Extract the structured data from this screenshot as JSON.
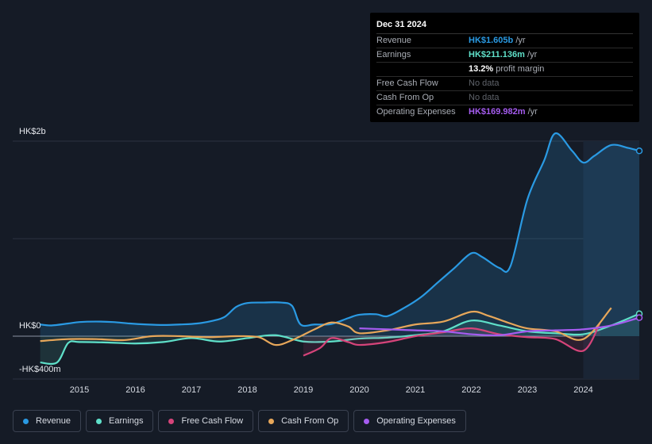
{
  "tooltip": {
    "date": "Dec 31 2024",
    "rows": [
      {
        "label": "Revenue",
        "value": "HK$1.605b",
        "unit": " /yr",
        "color": "#2a9ae3"
      },
      {
        "label": "Earnings",
        "value": "HK$211.136m",
        "unit": " /yr",
        "color": "#5fe0c9"
      },
      {
        "label": "",
        "value": "13.2%",
        "unit": " profit margin",
        "color": "#ffffff"
      },
      {
        "label": "Free Cash Flow",
        "value": "No data",
        "unit": "",
        "color": "#5f636a"
      },
      {
        "label": "Cash From Op",
        "value": "No data",
        "unit": "",
        "color": "#5f636a"
      },
      {
        "label": "Operating Expenses",
        "value": "HK$169.982m",
        "unit": " /yr",
        "color": "#a55cf0"
      }
    ]
  },
  "chart_data": {
    "type": "line",
    "title": "",
    "y_labels": {
      "top": "HK$2b",
      "zero": "HK$0",
      "bottom": "-HK$400m"
    },
    "ylim": [
      -400,
      2000
    ],
    "xlim": [
      2014.3,
      2025.0
    ],
    "x_ticks": [
      "2015",
      "2016",
      "2017",
      "2018",
      "2019",
      "2020",
      "2021",
      "2022",
      "2023",
      "2024"
    ],
    "x_tick_values": [
      2015,
      2016,
      2017,
      2018,
      2019,
      2020,
      2021,
      2022,
      2023,
      2024
    ],
    "forecast_start": 2024,
    "series": [
      {
        "name": "Revenue",
        "color": "#2a9ae3",
        "fill": true,
        "x": [
          2014.3,
          2014.5,
          2014.8,
          2015.0,
          2015.3,
          2015.6,
          2015.9,
          2016.2,
          2016.5,
          2016.8,
          2017.1,
          2017.4,
          2017.6,
          2017.8,
          2018.0,
          2018.3,
          2018.6,
          2018.8,
          2018.95,
          2019.2,
          2019.5,
          2019.8,
          2020.0,
          2020.3,
          2020.5,
          2020.8,
          2021.1,
          2021.4,
          2021.7,
          2022.0,
          2022.2,
          2022.5,
          2022.7,
          2023.0,
          2023.3,
          2023.5,
          2023.8,
          2024.0,
          2024.2,
          2024.5,
          2024.8,
          2025.0
        ],
        "values": [
          120,
          110,
          130,
          145,
          150,
          145,
          130,
          120,
          115,
          120,
          130,
          160,
          200,
          300,
          340,
          345,
          345,
          310,
          120,
          120,
          125,
          185,
          220,
          225,
          205,
          290,
          400,
          550,
          700,
          850,
          810,
          700,
          720,
          1400,
          1800,
          2080,
          1900,
          1780,
          1850,
          1960,
          1930,
          1900
        ]
      },
      {
        "name": "Earnings",
        "color": "#5fe0c9",
        "fill": true,
        "x": [
          2014.3,
          2014.6,
          2014.8,
          2015.0,
          2015.5,
          2016.0,
          2016.5,
          2017.0,
          2017.5,
          2018.0,
          2018.5,
          2019.0,
          2019.5,
          2020.0,
          2020.5,
          2021.0,
          2021.5,
          2022.0,
          2022.5,
          2023.0,
          2023.5,
          2024.0,
          2024.5,
          2025.0
        ],
        "values": [
          -270,
          -270,
          -70,
          -60,
          -65,
          -75,
          -60,
          -20,
          -55,
          -20,
          10,
          -55,
          -55,
          -25,
          -15,
          10,
          50,
          160,
          110,
          50,
          30,
          20,
          110,
          230
        ]
      },
      {
        "name": "Free Cash Flow",
        "color": "#d6447a",
        "fill": true,
        "x": [
          2019.0,
          2019.3,
          2019.5,
          2019.8,
          2020.0,
          2020.5,
          2021.0,
          2021.5,
          2022.0,
          2022.5,
          2023.0,
          2023.5,
          2024.0,
          2024.3
        ],
        "values": [
          -200,
          -120,
          -20,
          -60,
          -90,
          -60,
          0,
          40,
          80,
          20,
          -10,
          -30,
          -150,
          140
        ]
      },
      {
        "name": "Cash From Op",
        "color": "#e7a75a",
        "fill": false,
        "x": [
          2014.3,
          2014.8,
          2015.3,
          2015.8,
          2016.3,
          2016.8,
          2017.3,
          2017.8,
          2018.2,
          2018.5,
          2018.8,
          2019.2,
          2019.5,
          2019.8,
          2020.0,
          2020.5,
          2021.0,
          2021.5,
          2022.0,
          2022.3,
          2022.7,
          2023.0,
          2023.5,
          2024.0,
          2024.5
        ],
        "values": [
          -50,
          -30,
          -30,
          -40,
          0,
          0,
          -10,
          0,
          -10,
          -90,
          -40,
          70,
          140,
          100,
          30,
          60,
          120,
          150,
          250,
          210,
          130,
          80,
          50,
          -30,
          290
        ]
      },
      {
        "name": "Operating Expenses",
        "color": "#a55cf0",
        "fill": false,
        "x": [
          2020.0,
          2020.5,
          2021.0,
          2021.5,
          2022.0,
          2022.5,
          2023.0,
          2023.5,
          2024.0,
          2024.5,
          2025.0
        ],
        "values": [
          80,
          70,
          60,
          50,
          20,
          10,
          50,
          60,
          70,
          110,
          190
        ]
      }
    ]
  },
  "legend": [
    "Revenue",
    "Earnings",
    "Free Cash Flow",
    "Cash From Op",
    "Operating Expenses"
  ]
}
